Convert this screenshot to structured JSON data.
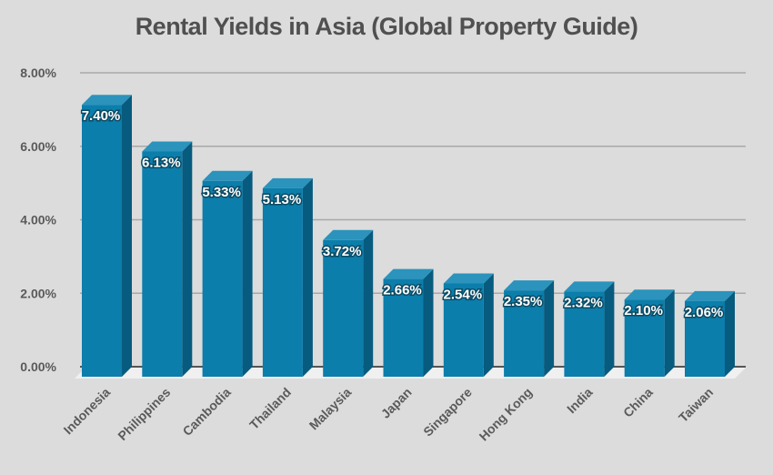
{
  "chart_data": {
    "type": "bar",
    "style": "3d-column",
    "title": "Rental Yields in Asia (Global Property Guide)",
    "xlabel": "",
    "ylabel": "",
    "categories": [
      "Indonesia",
      "Philippines",
      "Cambodia",
      "Thailand",
      "Malaysia",
      "Japan",
      "Singapore",
      "Hong Kong",
      "India",
      "China",
      "Taiwan"
    ],
    "values": [
      7.4,
      6.13,
      5.33,
      5.13,
      3.72,
      2.66,
      2.54,
      2.35,
      2.32,
      2.1,
      2.06
    ],
    "value_labels": [
      "7.40%",
      "6.13%",
      "5.33%",
      "5.13%",
      "3.72%",
      "2.66%",
      "2.54%",
      "2.35%",
      "2.32%",
      "2.10%",
      "2.06%"
    ],
    "ylim": [
      0,
      8
    ],
    "yticks": [
      0,
      2,
      4,
      6,
      8
    ],
    "ytick_labels": [
      "0.00%",
      "2.00%",
      "4.00%",
      "6.00%",
      "8.00%"
    ],
    "grid": true,
    "legend": null,
    "colors": {
      "bar_front": "#0b7eab",
      "bar_side": "#075b7e",
      "bar_top": "#2b93bc",
      "background": "#dcdcdc",
      "gridline": "#a8a8a8",
      "floor": "#f0f0f0"
    }
  }
}
